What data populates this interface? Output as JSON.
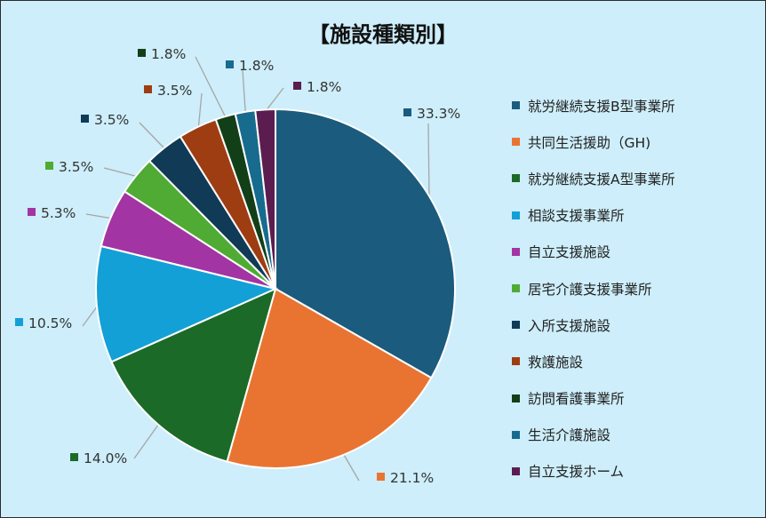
{
  "chart_data": {
    "type": "pie",
    "title": "【施設種類別】",
    "legend_position": "right",
    "slices": [
      {
        "name": "就労継続支援B型事業所",
        "value": 33.3,
        "label": "33.3%",
        "color": "#1b5b7d"
      },
      {
        "name": "共同生活援助（GH)",
        "value": 21.1,
        "label": "21.1%",
        "color": "#e97432"
      },
      {
        "name": "就労継続支援A型事業所",
        "value": 14.0,
        "label": "14.0%",
        "color": "#1c6a27"
      },
      {
        "name": "相談支援事業所",
        "value": 10.5,
        "label": "10.5%",
        "color": "#13a0d6"
      },
      {
        "name": "自立支援施設",
        "value": 5.3,
        "label": "5.3%",
        "color": "#a334a3"
      },
      {
        "name": "居宅介護支援事業所",
        "value": 3.5,
        "label": "3.5%",
        "color": "#4fab33"
      },
      {
        "name": "入所支援施設",
        "value": 3.5,
        "label": "3.5%",
        "color": "#103a56"
      },
      {
        "name": "救護施設",
        "value": 3.5,
        "label": "3.5%",
        "color": "#9e3d12"
      },
      {
        "name": "訪問看護事業所",
        "value": 1.8,
        "label": "1.8%",
        "color": "#123f17"
      },
      {
        "name": "生活介護施設",
        "value": 1.8,
        "label": "1.8%",
        "color": "#176b8e"
      },
      {
        "name": "自立支援ホーム",
        "value": 1.8,
        "label": "1.8%",
        "color": "#5b1d50"
      }
    ]
  }
}
